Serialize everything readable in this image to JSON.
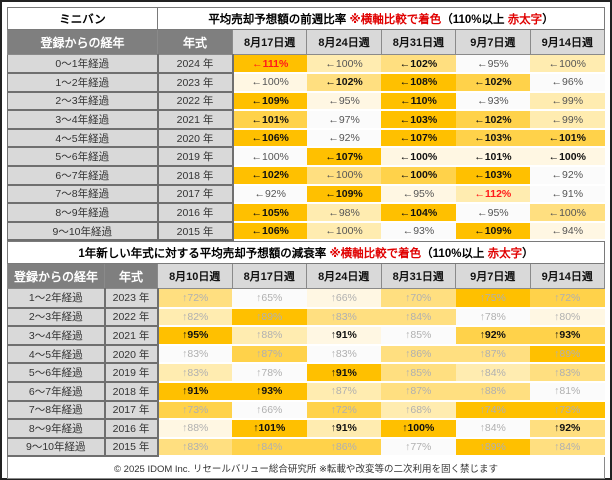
{
  "top": {
    "category": "ミニバン",
    "title": "平均売却予想額の前週比率",
    "note_prefix": "※横軸比較で着色",
    "note_mid": "（110%以上 ",
    "note_red": "赤太字",
    "note_end": "）",
    "col_elapsed": "登録からの経年",
    "col_year": "年式",
    "weeks": [
      "8月17日週",
      "8月24日週",
      "8月31日週",
      "9月7日週",
      "9月14日週"
    ],
    "arrow": "←",
    "rows": [
      {
        "elapsed": "0～1年経過",
        "year": "2024 年",
        "cells": [
          {
            "v": "111%",
            "l": 5,
            "s": "r"
          },
          {
            "v": "100%",
            "l": 2,
            "s": "g"
          },
          {
            "v": "102%",
            "l": 3,
            "s": "b"
          },
          {
            "v": "95%",
            "l": 0,
            "s": "g"
          },
          {
            "v": "100%",
            "l": 2,
            "s": "g"
          }
        ]
      },
      {
        "elapsed": "1～2年経過",
        "year": "2023 年",
        "cells": [
          {
            "v": "100%",
            "l": 1,
            "s": "g"
          },
          {
            "v": "102%",
            "l": 3,
            "s": "b"
          },
          {
            "v": "108%",
            "l": 5,
            "s": "b"
          },
          {
            "v": "102%",
            "l": 4,
            "s": "b"
          },
          {
            "v": "96%",
            "l": 0,
            "s": "g"
          }
        ]
      },
      {
        "elapsed": "2～3年経過",
        "year": "2022 年",
        "cells": [
          {
            "v": "109%",
            "l": 5,
            "s": "b"
          },
          {
            "v": "95%",
            "l": 1,
            "s": "g"
          },
          {
            "v": "110%",
            "l": 5,
            "s": "b"
          },
          {
            "v": "93%",
            "l": 0,
            "s": "g"
          },
          {
            "v": "99%",
            "l": 2,
            "s": "g"
          }
        ]
      },
      {
        "elapsed": "3～4年経過",
        "year": "2021 年",
        "cells": [
          {
            "v": "101%",
            "l": 4,
            "s": "b"
          },
          {
            "v": "97%",
            "l": 0,
            "s": "g"
          },
          {
            "v": "103%",
            "l": 5,
            "s": "b"
          },
          {
            "v": "102%",
            "l": 4,
            "s": "b"
          },
          {
            "v": "99%",
            "l": 2,
            "s": "g"
          }
        ]
      },
      {
        "elapsed": "4～5年経過",
        "year": "2020 年",
        "cells": [
          {
            "v": "106%",
            "l": 5,
            "s": "b"
          },
          {
            "v": "92%",
            "l": 0,
            "s": "g"
          },
          {
            "v": "107%",
            "l": 5,
            "s": "b"
          },
          {
            "v": "103%",
            "l": 4,
            "s": "b"
          },
          {
            "v": "101%",
            "l": 4,
            "s": "b"
          }
        ]
      },
      {
        "elapsed": "5～6年経過",
        "year": "2019 年",
        "cells": [
          {
            "v": "100%",
            "l": 0,
            "s": "g"
          },
          {
            "v": "107%",
            "l": 5,
            "s": "b"
          },
          {
            "v": "100%",
            "l": 1,
            "s": "b"
          },
          {
            "v": "101%",
            "l": 1,
            "s": "b"
          },
          {
            "v": "100%",
            "l": 1,
            "s": "b"
          }
        ]
      },
      {
        "elapsed": "6～7年経過",
        "year": "2018 年",
        "cells": [
          {
            "v": "102%",
            "l": 5,
            "s": "b"
          },
          {
            "v": "100%",
            "l": 3,
            "s": "g"
          },
          {
            "v": "100%",
            "l": 4,
            "s": "b"
          },
          {
            "v": "103%",
            "l": 5,
            "s": "b"
          },
          {
            "v": "92%",
            "l": 0,
            "s": "g"
          }
        ]
      },
      {
        "elapsed": "7～8年経過",
        "year": "2017 年",
        "cells": [
          {
            "v": "92%",
            "l": 0,
            "s": "g"
          },
          {
            "v": "109%",
            "l": 5,
            "s": "b"
          },
          {
            "v": "95%",
            "l": 1,
            "s": "g"
          },
          {
            "v": "112%",
            "l": 2,
            "s": "r"
          },
          {
            "v": "91%",
            "l": 0,
            "s": "g"
          }
        ]
      },
      {
        "elapsed": "8～9年経過",
        "year": "2016 年",
        "cells": [
          {
            "v": "105%",
            "l": 5,
            "s": "b"
          },
          {
            "v": "98%",
            "l": 2,
            "s": "g"
          },
          {
            "v": "104%",
            "l": 5,
            "s": "b"
          },
          {
            "v": "95%",
            "l": 0,
            "s": "g"
          },
          {
            "v": "100%",
            "l": 3,
            "s": "g"
          }
        ]
      },
      {
        "elapsed": "9～10年経過",
        "year": "2015 年",
        "cells": [
          {
            "v": "106%",
            "l": 5,
            "s": "b"
          },
          {
            "v": "100%",
            "l": 2,
            "s": "g"
          },
          {
            "v": "93%",
            "l": 0,
            "s": "g"
          },
          {
            "v": "109%",
            "l": 5,
            "s": "b"
          },
          {
            "v": "94%",
            "l": 1,
            "s": "g"
          }
        ]
      }
    ]
  },
  "bottom": {
    "title": "1年新しい年式に対する平均売却予想額の減衰率",
    "note_prefix": "※横軸比較で着色",
    "note_mid": "（110%以上 ",
    "note_red": "赤太字",
    "note_end": "）",
    "col_elapsed": "登録からの経年",
    "col_year": "年式",
    "weeks": [
      "8月10日週",
      "8月17日週",
      "8月24日週",
      "8月31日週",
      "9月7日週",
      "9月14日週"
    ],
    "arrow": "↑",
    "rows": [
      {
        "elapsed": "1～2年経過",
        "year": "2023 年",
        "cells": [
          {
            "v": "72%",
            "l": 3,
            "s": "lg"
          },
          {
            "v": "65%",
            "l": 0,
            "s": "lg"
          },
          {
            "v": "66%",
            "l": 1,
            "s": "lg"
          },
          {
            "v": "70%",
            "l": 3,
            "s": "lg"
          },
          {
            "v": "75%",
            "l": 5,
            "s": "lg"
          },
          {
            "v": "72%",
            "l": 4,
            "s": "lg"
          }
        ]
      },
      {
        "elapsed": "2～3年経過",
        "year": "2022 年",
        "cells": [
          {
            "v": "82%",
            "l": 2,
            "s": "lg"
          },
          {
            "v": "89%",
            "l": 5,
            "s": "lg"
          },
          {
            "v": "83%",
            "l": 3,
            "s": "lg"
          },
          {
            "v": "84%",
            "l": 3,
            "s": "lg"
          },
          {
            "v": "78%",
            "l": 0,
            "s": "lg"
          },
          {
            "v": "80%",
            "l": 1,
            "s": "lg"
          }
        ]
      },
      {
        "elapsed": "3～4年経過",
        "year": "2021 年",
        "cells": [
          {
            "v": "95%",
            "l": 5,
            "s": "b"
          },
          {
            "v": "88%",
            "l": 2,
            "s": "lg"
          },
          {
            "v": "91%",
            "l": 1,
            "s": "b"
          },
          {
            "v": "85%",
            "l": 0,
            "s": "lg"
          },
          {
            "v": "92%",
            "l": 4,
            "s": "b"
          },
          {
            "v": "93%",
            "l": 4,
            "s": "b"
          }
        ]
      },
      {
        "elapsed": "4～5年経過",
        "year": "2020 年",
        "cells": [
          {
            "v": "83%",
            "l": 0,
            "s": "lg"
          },
          {
            "v": "87%",
            "l": 4,
            "s": "lg"
          },
          {
            "v": "83%",
            "l": 0,
            "s": "lg"
          },
          {
            "v": "86%",
            "l": 3,
            "s": "lg"
          },
          {
            "v": "87%",
            "l": 3,
            "s": "lg"
          },
          {
            "v": "89%",
            "l": 5,
            "s": "lg"
          }
        ]
      },
      {
        "elapsed": "5～6年経過",
        "year": "2019 年",
        "cells": [
          {
            "v": "83%",
            "l": 2,
            "s": "lg"
          },
          {
            "v": "78%",
            "l": 0,
            "s": "lg"
          },
          {
            "v": "91%",
            "l": 5,
            "s": "b"
          },
          {
            "v": "85%",
            "l": 3,
            "s": "lg"
          },
          {
            "v": "84%",
            "l": 2,
            "s": "lg"
          },
          {
            "v": "83%",
            "l": 3,
            "s": "lg"
          }
        ]
      },
      {
        "elapsed": "6～7年経過",
        "year": "2018 年",
        "cells": [
          {
            "v": "91%",
            "l": 5,
            "s": "b"
          },
          {
            "v": "93%",
            "l": 5,
            "s": "b"
          },
          {
            "v": "87%",
            "l": 2,
            "s": "lg"
          },
          {
            "v": "87%",
            "l": 3,
            "s": "lg"
          },
          {
            "v": "88%",
            "l": 3,
            "s": "lg"
          },
          {
            "v": "81%",
            "l": 0,
            "s": "lg"
          }
        ]
      },
      {
        "elapsed": "7～8年経過",
        "year": "2017 年",
        "cells": [
          {
            "v": "73%",
            "l": 4,
            "s": "lg"
          },
          {
            "v": "66%",
            "l": 0,
            "s": "lg"
          },
          {
            "v": "72%",
            "l": 4,
            "s": "lg"
          },
          {
            "v": "68%",
            "l": 2,
            "s": "lg"
          },
          {
            "v": "74%",
            "l": 5,
            "s": "lg"
          },
          {
            "v": "73%",
            "l": 5,
            "s": "lg"
          }
        ]
      },
      {
        "elapsed": "8～9年経過",
        "year": "2016 年",
        "cells": [
          {
            "v": "88%",
            "l": 1,
            "s": "lg"
          },
          {
            "v": "101%",
            "l": 5,
            "s": "b"
          },
          {
            "v": "91%",
            "l": 2,
            "s": "b"
          },
          {
            "v": "100%",
            "l": 5,
            "s": "b"
          },
          {
            "v": "84%",
            "l": 0,
            "s": "lg"
          },
          {
            "v": "92%",
            "l": 3,
            "s": "b"
          }
        ]
      },
      {
        "elapsed": "9～10年経過",
        "year": "2015 年",
        "cells": [
          {
            "v": "83%",
            "l": 3,
            "s": "lg"
          },
          {
            "v": "84%",
            "l": 4,
            "s": "lg"
          },
          {
            "v": "86%",
            "l": 4,
            "s": "lg"
          },
          {
            "v": "77%",
            "l": 0,
            "s": "lg"
          },
          {
            "v": "89%",
            "l": 5,
            "s": "lg"
          },
          {
            "v": "84%",
            "l": 3,
            "s": "lg"
          }
        ]
      }
    ]
  },
  "footer": "© 2025 IDOM Inc. リセールバリュー総合研究所 ※転載や改変等の二次利用を固く禁じます"
}
